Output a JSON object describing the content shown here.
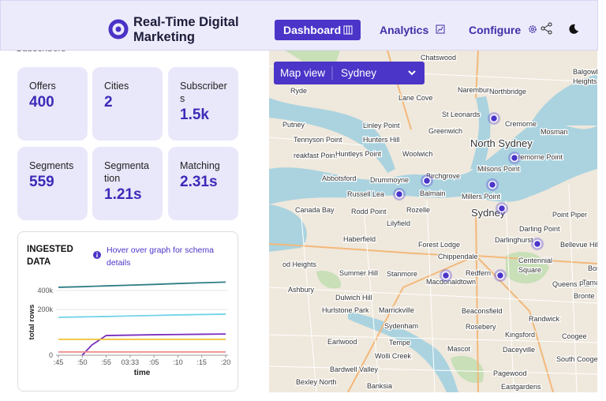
{
  "header": {
    "title": "Real-Time Digital Marketing",
    "nav": [
      "Dashboard",
      "Analytics",
      "Configure"
    ]
  },
  "hidden_label": "Subscribers",
  "stats": [
    {
      "label": "Offers",
      "value": "400"
    },
    {
      "label": "Cities",
      "value": "2"
    },
    {
      "label": "Subscribers",
      "value": "1.5k"
    },
    {
      "label": "Segments",
      "value": "559"
    },
    {
      "label": "Segmentation",
      "value": "1.21s"
    },
    {
      "label": "Matching",
      "value": "2.31s"
    }
  ],
  "chart_data": {
    "type": "line",
    "title": "INGESTED DATA",
    "note": "Hover over graph for schema details",
    "x_label": "time",
    "y_label": "total rows",
    "x": [
      45,
      50,
      52,
      55,
      60,
      65,
      70,
      75,
      80
    ],
    "xlim": [
      44.5,
      80.5
    ],
    "xticks": [
      {
        "value": 45,
        "label": ":45"
      },
      {
        "value": 50,
        "label": ":50"
      },
      {
        "value": 55,
        "label": ":55"
      },
      {
        "value": 60,
        "label": "03:33"
      },
      {
        "value": 65,
        "label": ":05"
      },
      {
        "value": 70,
        "label": ":10"
      },
      {
        "value": 75,
        "label": ":15"
      },
      {
        "value": 80,
        "label": ":20"
      }
    ],
    "ylim": [
      0,
      525000
    ],
    "yscale": "sqrt",
    "grid": true,
    "yticks": [
      0,
      {
        "value": 200000,
        "label": "200k"
      },
      {
        "value": 400000,
        "label": "400k"
      }
    ],
    "series": [
      {
        "color": "#2e7d86",
        "values": [
          440000,
          448000,
          452000,
          458000,
          468000,
          478000,
          490000,
          500000,
          510000
        ]
      },
      {
        "color": "#72d3e6",
        "values": [
          137000,
          140000,
          141000,
          143000,
          147000,
          151000,
          155000,
          158000,
          161000
        ]
      },
      {
        "color": "#7a2fbf",
        "values": [
          null,
          0,
          10000,
          37000,
          38500,
          40000,
          41000,
          42000,
          43000
        ]
      },
      {
        "color": "#f0c232",
        "values": [
          24000,
          24000,
          24000,
          24000,
          24000,
          24000,
          24000,
          24000,
          24000
        ]
      },
      {
        "color": "#ef8a8a",
        "values": [
          1000,
          1000,
          1000,
          1000,
          1000,
          1000,
          1000,
          1000,
          1000
        ]
      }
    ]
  },
  "map": {
    "control_label": "Map view",
    "city": "Sydney",
    "labels": [
      "Chatswood",
      "Ryde",
      "Lane Cove",
      "Naremburn",
      "Northbridge",
      "Balgowlah",
      "Heights",
      "St Leonards",
      "Cremorne",
      "Putney",
      "Linley Point",
      "Greenwich",
      "Mosman",
      "Tennyson Point",
      "Hunters Hill",
      "North Sydney",
      "reakfast Point",
      "Huntleys Point",
      "Woolwich",
      "Cremorne Point",
      "Milsons Point",
      "Abbotsford",
      "Drummoyne",
      "Birchgrove",
      "Balmain",
      "Russell Lea",
      "Millers Point",
      "Canada Bay",
      "Rodd Point",
      "Rozelle",
      "Sydney",
      "Point Piper",
      "Lilyfield",
      "Darling Point",
      "Darlinghurst",
      "Haberfield",
      "Forest Lodge",
      "Bellevue Hill",
      "Chippendale",
      "Centennial",
      "Square",
      "Bondi Be",
      "od Heights",
      "Summer Hill",
      "Stanmore",
      "Redfern",
      "Macdonaldtown",
      "Queens Park",
      "Tamarama",
      "Ashbury",
      "Dulwich Hill",
      "Bronte",
      "Hurlstone Park",
      "Marrickville",
      "Beaconsfield",
      "Randwick",
      "Sydenham",
      "Rosebery",
      "Kingsford",
      "Coogee",
      "Earlwood",
      "Tempe",
      "Mascot",
      "Daceyville",
      "South Coogee",
      "Wolli Creek",
      "Bardwell Valley",
      "Pagewood",
      "Bexley North",
      "Banksia",
      "Eastgardens"
    ]
  }
}
